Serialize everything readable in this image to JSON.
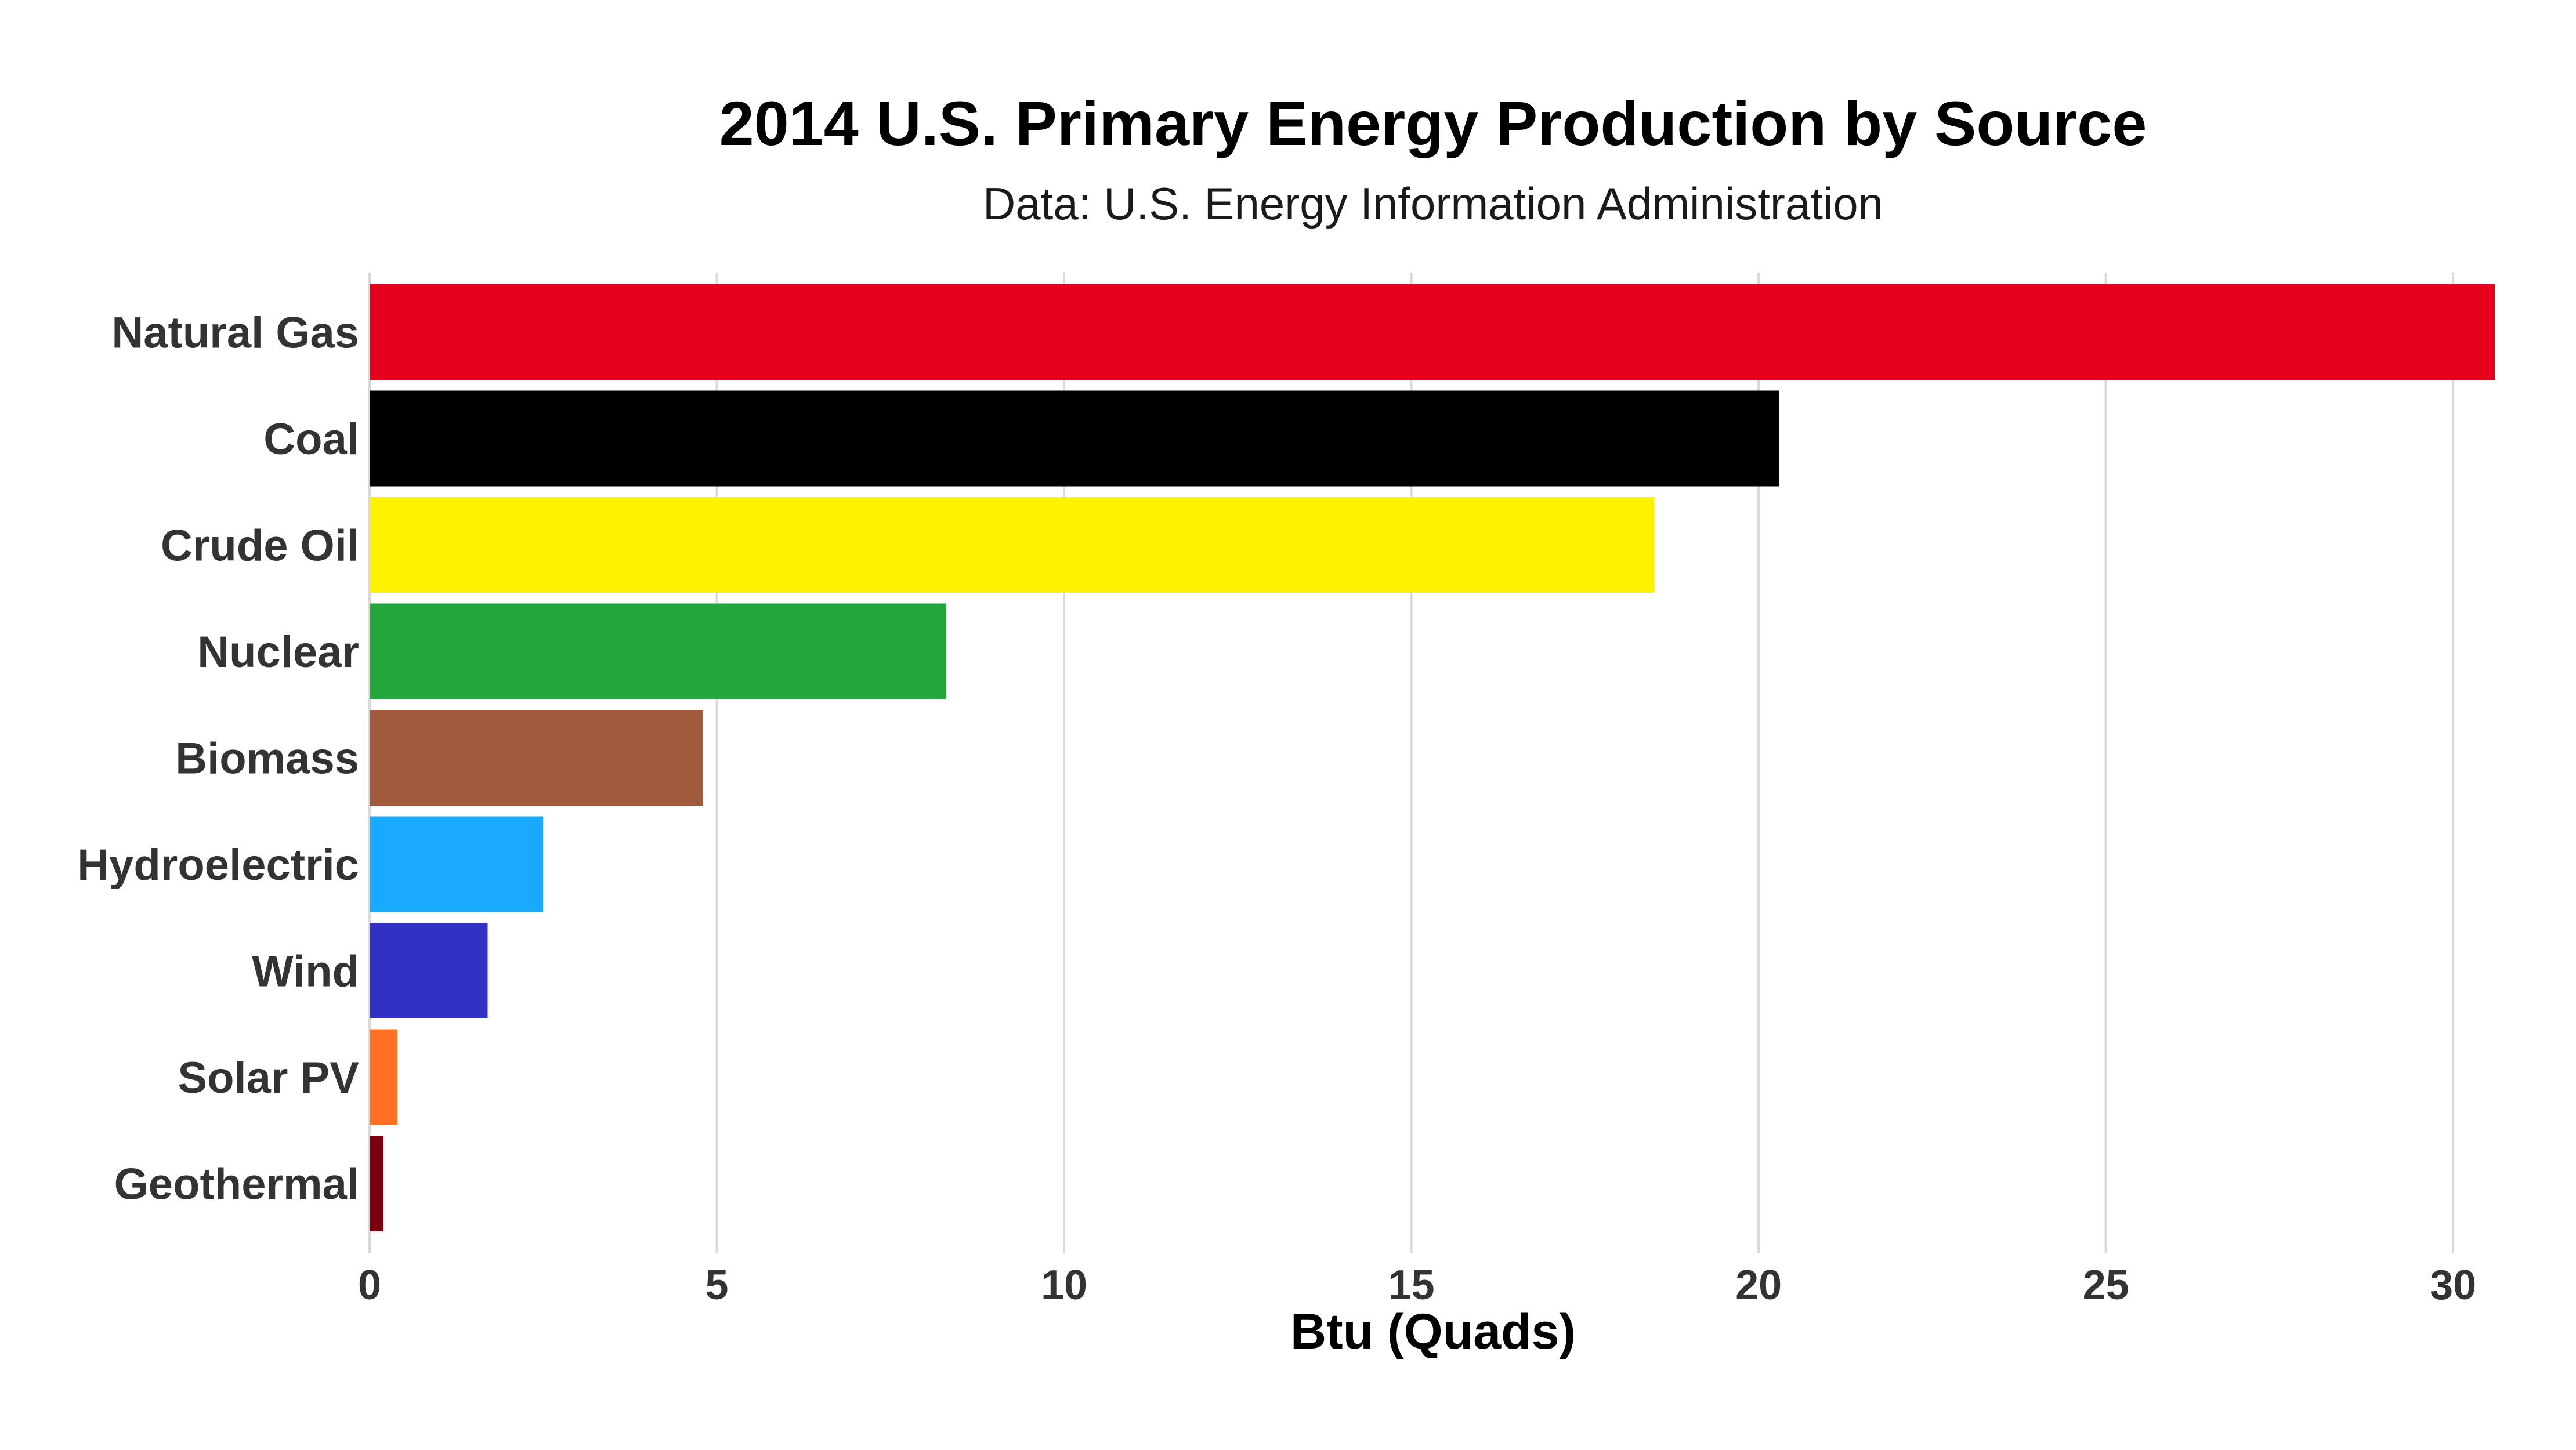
{
  "chart_data": {
    "type": "bar",
    "orientation": "horizontal",
    "title": "2014 U.S. Primary Energy Production by Source",
    "subtitle": "Data: U.S. Energy Information Administration",
    "xlabel": "Btu (Quads)",
    "ylabel": "",
    "xlim": [
      0,
      30.6
    ],
    "xticks": [
      0,
      5,
      10,
      15,
      20,
      25,
      30
    ],
    "grid": true,
    "legend": "none",
    "categories": [
      "Natural Gas",
      "Coal",
      "Crude Oil",
      "Nuclear",
      "Biomass",
      "Hydroelectric",
      "Wind",
      "Solar PV",
      "Geothermal"
    ],
    "values": [
      30.6,
      20.3,
      18.5,
      8.3,
      4.8,
      2.5,
      1.7,
      0.4,
      0.2
    ],
    "colors": [
      "#e5001e",
      "#000000",
      "#fff200",
      "#22a63c",
      "#a05a3c",
      "#19aaff",
      "#3330c4",
      "#ff7024",
      "#7a0010"
    ]
  }
}
